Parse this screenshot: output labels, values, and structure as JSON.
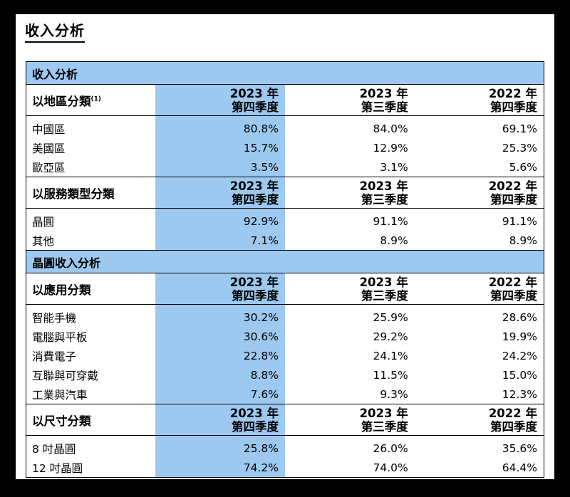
{
  "title": "收入分析",
  "column_headers": [
    {
      "year": "2023 年",
      "quarter": "第四季度"
    },
    {
      "year": "2023 年",
      "quarter": "第三季度"
    },
    {
      "year": "2022 年",
      "quarter": "第四季度"
    }
  ],
  "section1": {
    "title": "收入分析"
  },
  "region": {
    "label": "以地區分類",
    "note": "(1)",
    "rows": [
      {
        "name": "中國區",
        "values": [
          "80.8%",
          "84.0%",
          "69.1%"
        ]
      },
      {
        "name": "美國區",
        "values": [
          "15.7%",
          "12.9%",
          "25.3%"
        ]
      },
      {
        "name": "歐亞區",
        "values": [
          "3.5%",
          "3.1%",
          "5.6%"
        ]
      }
    ]
  },
  "service": {
    "label": "以服務類型分類",
    "rows": [
      {
        "name": "晶圓",
        "values": [
          "92.9%",
          "91.1%",
          "91.1%"
        ]
      },
      {
        "name": "其他",
        "values": [
          "7.1%",
          "8.9%",
          "8.9%"
        ]
      }
    ]
  },
  "section2": {
    "title": "晶圓收入分析"
  },
  "application": {
    "label": "以應用分類",
    "rows": [
      {
        "name": "智能手機",
        "values": [
          "30.2%",
          "25.9%",
          "28.6%"
        ]
      },
      {
        "name": "電腦與平板",
        "values": [
          "30.6%",
          "29.2%",
          "19.9%"
        ]
      },
      {
        "name": "消費電子",
        "values": [
          "22.8%",
          "24.1%",
          "24.2%"
        ]
      },
      {
        "name": "互聯與可穿戴",
        "values": [
          "8.8%",
          "11.5%",
          "15.0%"
        ]
      },
      {
        "name": "工業與汽車",
        "values": [
          "7.6%",
          "9.3%",
          "12.3%"
        ]
      }
    ]
  },
  "size": {
    "label": "以尺寸分類",
    "rows": [
      {
        "name": "8 吋晶圓",
        "values": [
          "25.8%",
          "26.0%",
          "35.6%"
        ]
      },
      {
        "name": "12 吋晶圓",
        "values": [
          "74.2%",
          "74.0%",
          "64.4%"
        ]
      }
    ]
  },
  "colors": {
    "accent": "#9dc9f0",
    "background": "#ffffff",
    "frame": "#000000"
  }
}
